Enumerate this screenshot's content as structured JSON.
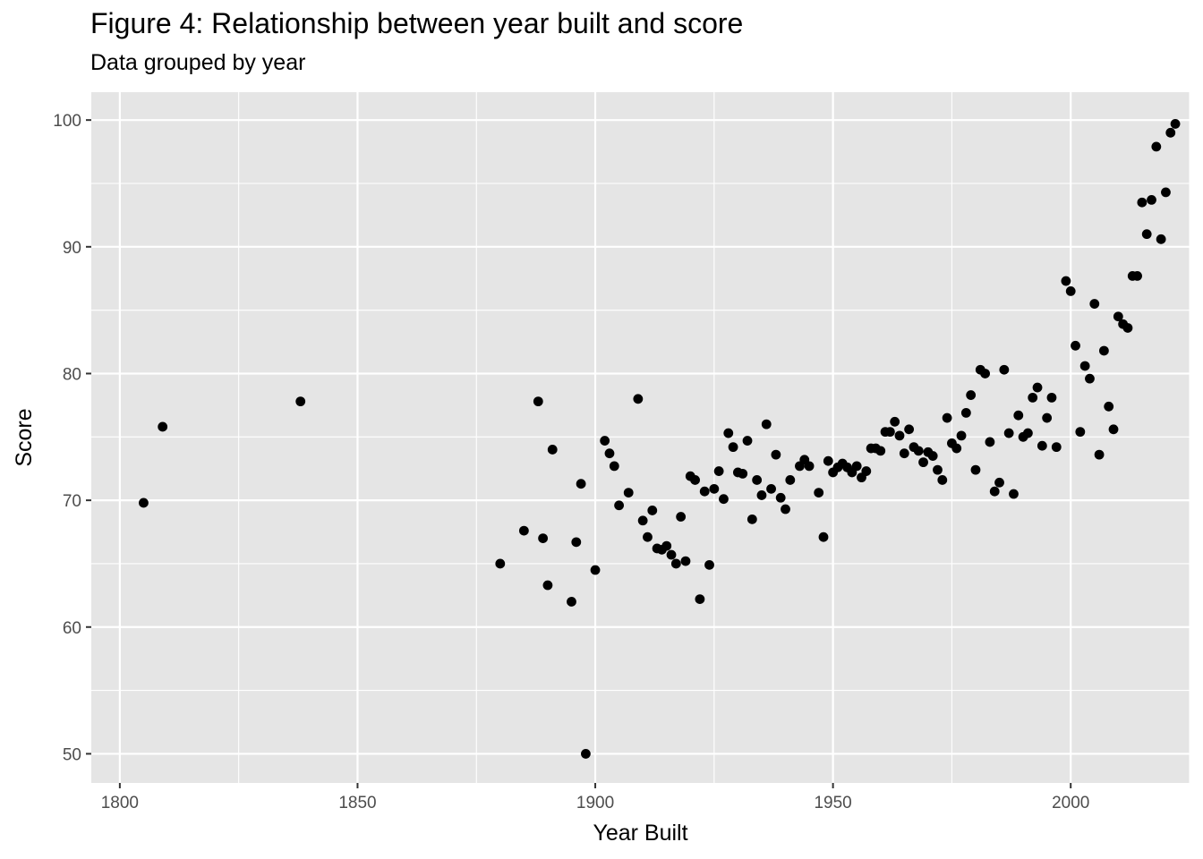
{
  "chart_data": {
    "type": "scatter",
    "title": "Figure 4: Relationship between year built and score",
    "subtitle": "Data grouped by year",
    "xlabel": "Year Built",
    "ylabel": "Score",
    "xlim": [
      1794,
      2025
    ],
    "ylim": [
      47.7,
      102.2
    ],
    "x_ticks": [
      1800,
      1850,
      1900,
      1950,
      2000
    ],
    "y_ticks": [
      50,
      60,
      70,
      80,
      90,
      100
    ],
    "x_tick_labels": [
      "1800",
      "1850",
      "1900",
      "1950",
      "2000"
    ],
    "y_tick_labels": [
      "50",
      "60",
      "70",
      "80",
      "90",
      "100"
    ],
    "grid": true,
    "background": "#e5e5e5",
    "grid_color": "#ffffff",
    "point_color": "#000000",
    "points": [
      [
        1805,
        69.8
      ],
      [
        1809,
        75.8
      ],
      [
        1838,
        77.8
      ],
      [
        1880,
        65.0
      ],
      [
        1885,
        67.6
      ],
      [
        1888,
        77.8
      ],
      [
        1889,
        67.0
      ],
      [
        1890,
        63.3
      ],
      [
        1891,
        74.0
      ],
      [
        1895,
        62.0
      ],
      [
        1896,
        66.7
      ],
      [
        1897,
        71.3
      ],
      [
        1898,
        50.0
      ],
      [
        1900,
        64.5
      ],
      [
        1902,
        74.7
      ],
      [
        1903,
        73.7
      ],
      [
        1904,
        72.7
      ],
      [
        1905,
        69.6
      ],
      [
        1907,
        70.6
      ],
      [
        1909,
        78.0
      ],
      [
        1910,
        68.4
      ],
      [
        1911,
        67.1
      ],
      [
        1912,
        69.2
      ],
      [
        1913,
        66.2
      ],
      [
        1914,
        66.1
      ],
      [
        1915,
        66.4
      ],
      [
        1916,
        65.7
      ],
      [
        1917,
        65.0
      ],
      [
        1918,
        68.7
      ],
      [
        1919,
        65.2
      ],
      [
        1920,
        71.9
      ],
      [
        1921,
        71.6
      ],
      [
        1922,
        62.2
      ],
      [
        1923,
        70.7
      ],
      [
        1924,
        64.9
      ],
      [
        1925,
        70.9
      ],
      [
        1926,
        72.3
      ],
      [
        1927,
        70.1
      ],
      [
        1928,
        75.3
      ],
      [
        1929,
        74.2
      ],
      [
        1930,
        72.2
      ],
      [
        1931,
        72.1
      ],
      [
        1932,
        74.7
      ],
      [
        1933,
        68.5
      ],
      [
        1934,
        71.6
      ],
      [
        1935,
        70.4
      ],
      [
        1936,
        76.0
      ],
      [
        1937,
        70.9
      ],
      [
        1938,
        73.6
      ],
      [
        1939,
        70.2
      ],
      [
        1940,
        69.3
      ],
      [
        1941,
        71.6
      ],
      [
        1943,
        72.7
      ],
      [
        1944,
        73.2
      ],
      [
        1945,
        72.7
      ],
      [
        1947,
        70.6
      ],
      [
        1948,
        67.1
      ],
      [
        1949,
        73.1
      ],
      [
        1950,
        72.2
      ],
      [
        1951,
        72.6
      ],
      [
        1952,
        72.9
      ],
      [
        1953,
        72.6
      ],
      [
        1954,
        72.2
      ],
      [
        1955,
        72.7
      ],
      [
        1956,
        71.8
      ],
      [
        1957,
        72.3
      ],
      [
        1958,
        74.1
      ],
      [
        1959,
        74.1
      ],
      [
        1960,
        73.9
      ],
      [
        1961,
        75.4
      ],
      [
        1962,
        75.4
      ],
      [
        1963,
        76.2
      ],
      [
        1964,
        75.1
      ],
      [
        1965,
        73.7
      ],
      [
        1966,
        75.6
      ],
      [
        1967,
        74.2
      ],
      [
        1968,
        73.9
      ],
      [
        1969,
        73.0
      ],
      [
        1970,
        73.8
      ],
      [
        1971,
        73.5
      ],
      [
        1972,
        72.4
      ],
      [
        1973,
        71.6
      ],
      [
        1974,
        76.5
      ],
      [
        1975,
        74.5
      ],
      [
        1976,
        74.1
      ],
      [
        1977,
        75.1
      ],
      [
        1978,
        76.9
      ],
      [
        1979,
        78.3
      ],
      [
        1980,
        72.4
      ],
      [
        1981,
        80.3
      ],
      [
        1982,
        80.0
      ],
      [
        1983,
        74.6
      ],
      [
        1984,
        70.7
      ],
      [
        1985,
        71.4
      ],
      [
        1986,
        80.3
      ],
      [
        1987,
        75.3
      ],
      [
        1988,
        70.5
      ],
      [
        1989,
        76.7
      ],
      [
        1990,
        75.0
      ],
      [
        1991,
        75.3
      ],
      [
        1992,
        78.1
      ],
      [
        1993,
        78.9
      ],
      [
        1994,
        74.3
      ],
      [
        1995,
        76.5
      ],
      [
        1996,
        78.1
      ],
      [
        1997,
        74.2
      ],
      [
        1999,
        87.3
      ],
      [
        2000,
        86.5
      ],
      [
        2001,
        82.2
      ],
      [
        2002,
        75.4
      ],
      [
        2003,
        80.6
      ],
      [
        2004,
        79.6
      ],
      [
        2005,
        85.5
      ],
      [
        2006,
        73.6
      ],
      [
        2007,
        81.8
      ],
      [
        2008,
        77.4
      ],
      [
        2009,
        75.6
      ],
      [
        2010,
        84.5
      ],
      [
        2011,
        83.9
      ],
      [
        2012,
        83.6
      ],
      [
        2013,
        87.7
      ],
      [
        2014,
        87.7
      ],
      [
        2015,
        93.5
      ],
      [
        2016,
        91.0
      ],
      [
        2017,
        93.7
      ],
      [
        2018,
        97.9
      ],
      [
        2019,
        90.6
      ],
      [
        2020,
        94.3
      ],
      [
        2021,
        99.0
      ],
      [
        2022,
        99.7
      ]
    ]
  }
}
